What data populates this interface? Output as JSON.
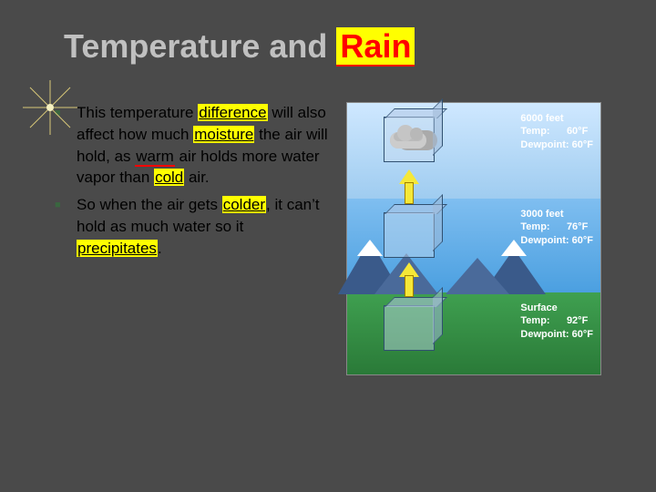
{
  "title": {
    "pre": "Temperature and ",
    "highlight": "Rain"
  },
  "bullets": [
    {
      "segments": [
        {
          "t": "This temperature ",
          "s": ""
        },
        {
          "t": "difference",
          "s": "hly"
        },
        {
          "t": " will also affect how much ",
          "s": ""
        },
        {
          "t": "moisture",
          "s": "hly"
        },
        {
          "t": " the air will hold, as ",
          "s": ""
        },
        {
          "t": "warm",
          "s": "hlb"
        },
        {
          "t": " air holds more water vapor than ",
          "s": ""
        },
        {
          "t": "cold",
          "s": "hly"
        },
        {
          "t": " air.",
          "s": ""
        }
      ]
    },
    {
      "segments": [
        {
          "t": "So when the air gets ",
          "s": ""
        },
        {
          "t": "colder",
          "s": "hly"
        },
        {
          "t": ", it can’t hold as much water so it ",
          "s": ""
        },
        {
          "t": "precipitates",
          "s": "hly"
        },
        {
          "t": ".",
          "s": ""
        }
      ]
    }
  ],
  "diagram": {
    "levels": [
      {
        "alt_label": "6000 feet",
        "temp_label": "Temp:",
        "temp_value": "60°F",
        "dew_label": "Dewpoint:",
        "dew_value": "60°F"
      },
      {
        "alt_label": "3000 feet",
        "temp_label": "Temp:",
        "temp_value": "76°F",
        "dew_label": "Dewpoint:",
        "dew_value": "60°F"
      },
      {
        "alt_label": "Surface",
        "temp_label": "Temp:",
        "temp_value": "92°F",
        "dew_label": "Dewpoint:",
        "dew_value": "60°F"
      }
    ],
    "colors": {
      "sky_top": "#cfe8ff",
      "sky_mid": "#7fbef0",
      "ground": "#3fa050",
      "mountain": "#3a5a8a",
      "arrow": "#f5e838",
      "cube_border": "#305070",
      "label_text": "#ffffff"
    }
  },
  "style": {
    "background": "#4a4a4a",
    "title_color": "#c0c0c0",
    "highlight_bg": "#ffff00",
    "highlight_fg": "#ff0000",
    "bullet_color": "#000000",
    "bullet_marker": "#3a6640"
  }
}
